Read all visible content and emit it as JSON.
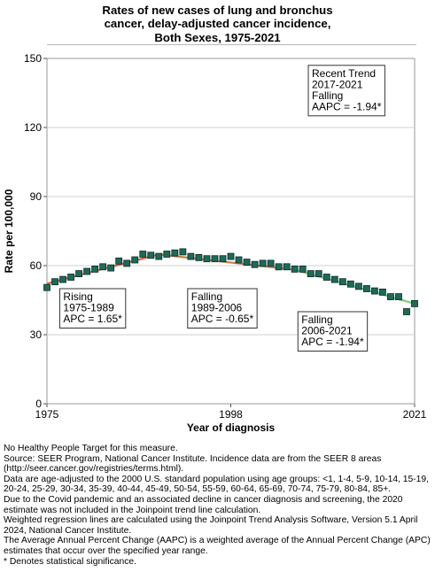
{
  "title_lines": [
    "Rates of new cases of lung and bronchus",
    "cancer, delay-adjusted cancer incidence,",
    "Both Sexes,  1975-2021"
  ],
  "notes": [
    "No Healthy People Target for this measure.",
    "Source: SEER Program, National Cancer Institute. Incidence data are from the SEER 8 areas (http://seer.cancer.gov/registries/terms.html).",
    "Data are age-adjusted to the 2000 U.S. standard population using age groups: <1, 1-4, 5-9, 10-14, 15-19, 20-24, 25-29, 30-34, 35-39, 40-44, 45-49, 50-54, 55-59, 60-64, 65-69, 70-74, 75-79, 80-84, 85+.",
    "Due to the Covid pandemic and an associated decline in cancer diagnosis and screening, the 2020 estimate was not included in the Joinpoint trend line calculation.",
    "Weighted regression lines are calculated using the Joinpoint Trend Analysis Software, Version 5.1 April 2024, National Cancer Institute.",
    "The Average Annual Percent Change (AAPC) is a weighted average of the Annual Percent Change (APC) estimates that occur over the specified year range.",
    "* Denotes statistical significance."
  ],
  "chart_data": {
    "type": "scatter",
    "title": "Rates of new cases of lung and bronchus cancer, delay-adjusted cancer incidence, Both Sexes,  1975-2021",
    "xlabel": "Year of diagnosis",
    "ylabel": "Rate per 100,000",
    "xlim": [
      1975,
      2021
    ],
    "ylim": [
      0,
      150
    ],
    "x_ticks": [
      "1975",
      "1998",
      "2021"
    ],
    "y_ticks": [
      "0",
      "30",
      "60",
      "90",
      "120",
      "150"
    ],
    "grid": "horizontal",
    "colors": {
      "points": "#1e6a5a",
      "point_edge": "#0d2b26",
      "trend_rising": "#e0643c",
      "trend_falling_1": "#c8824a",
      "trend_falling_2": "#7ccf7c",
      "grid": "#d0d0d0",
      "plot_border": "#9a9a9a"
    },
    "series": [
      {
        "name": "Observed",
        "x": [
          1975,
          1976,
          1977,
          1978,
          1979,
          1980,
          1981,
          1982,
          1983,
          1984,
          1985,
          1986,
          1987,
          1988,
          1989,
          1990,
          1991,
          1992,
          1993,
          1994,
          1995,
          1996,
          1997,
          1998,
          1999,
          2000,
          2001,
          2002,
          2003,
          2004,
          2005,
          2006,
          2007,
          2008,
          2009,
          2010,
          2011,
          2012,
          2013,
          2014,
          2015,
          2016,
          2017,
          2018,
          2019,
          2020,
          2021
        ],
        "y": [
          50.5,
          53.0,
          54.0,
          55.0,
          56.5,
          57.5,
          58.5,
          59.5,
          59.0,
          62.0,
          61.0,
          62.5,
          65.0,
          64.5,
          64.0,
          65.0,
          65.5,
          66.0,
          64.0,
          63.5,
          63.0,
          63.0,
          63.0,
          64.0,
          62.5,
          61.5,
          60.5,
          61.0,
          61.0,
          59.5,
          59.5,
          58.5,
          58.5,
          56.5,
          56.5,
          55.0,
          54.0,
          53.0,
          52.0,
          51.0,
          50.0,
          49.0,
          48.5,
          46.5,
          46.5,
          40.0,
          43.5
        ]
      },
      {
        "name": "Trend",
        "segments": [
          {
            "x": [
              1975,
              1989
            ],
            "y": [
              52.2,
              64.9
            ]
          },
          {
            "x": [
              1989,
              2006
            ],
            "y": [
              64.9,
              58.2
            ]
          },
          {
            "x": [
              2006,
              2021
            ],
            "y": [
              58.2,
              43.5
            ]
          }
        ]
      }
    ],
    "annotations": [
      {
        "lines": [
          "Rising",
          "1975-1989",
          "APC =  1.65*"
        ],
        "anchor": [
          1976.6,
          50
        ]
      },
      {
        "lines": [
          "Falling",
          "1989-2006",
          "APC = -0.65*"
        ],
        "anchor": [
          1992.6,
          50
        ]
      },
      {
        "lines": [
          "Falling",
          "2006-2021",
          "APC = -1.94*"
        ],
        "anchor": [
          2006.4,
          40
        ]
      },
      {
        "lines": [
          "Recent Trend",
          "2017-2021",
          "Falling",
          "AAPC = -1.94*"
        ],
        "anchor": [
          2007.7,
          147
        ]
      }
    ]
  }
}
